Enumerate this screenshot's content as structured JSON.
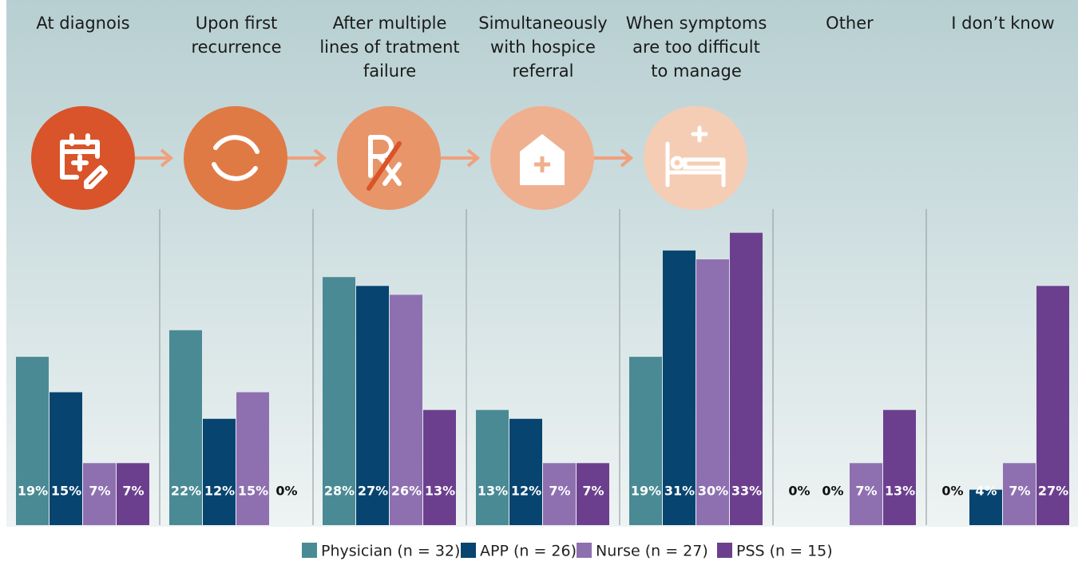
{
  "chart_data": {
    "type": "bar",
    "categories": [
      "At diagnois",
      "Upon first\nrecurrence",
      "After multiple\nlines of tratment\nfailure",
      "Simultaneously\nwith hospice\nreferral",
      "When symptoms\nare too difficult\nto manage",
      "Other",
      "I don’t know"
    ],
    "series": [
      {
        "name": "Physician (n = 32)",
        "color": "#4a8a94",
        "values": [
          19,
          22,
          28,
          13,
          19,
          0,
          0
        ],
        "value_labels": [
          "19%",
          "22%",
          "28%",
          "13%",
          "19%",
          "0%",
          "0%"
        ]
      },
      {
        "name": "APP (n = 26)",
        "color": "#074470",
        "values": [
          15,
          12,
          27,
          12,
          31,
          0,
          4
        ],
        "value_labels": [
          "15%",
          "12%",
          "27%",
          "12%",
          "31%",
          "0%",
          "4%"
        ]
      },
      {
        "name": "Nurse (n = 27)",
        "color": "#8e70b0",
        "values": [
          7,
          15,
          26,
          7,
          30,
          7,
          7
        ],
        "value_labels": [
          "7%",
          "15%",
          "26%",
          "7%",
          "30%",
          "7%",
          "7%"
        ]
      },
      {
        "name": "PSS (n = 15)",
        "color": "#6c3f8e",
        "values": [
          7,
          0,
          13,
          7,
          33,
          13,
          27
        ],
        "value_labels": [
          "7%",
          "0%",
          "13%",
          "7%",
          "33%",
          "13%",
          "27%"
        ]
      }
    ]
  }
}
